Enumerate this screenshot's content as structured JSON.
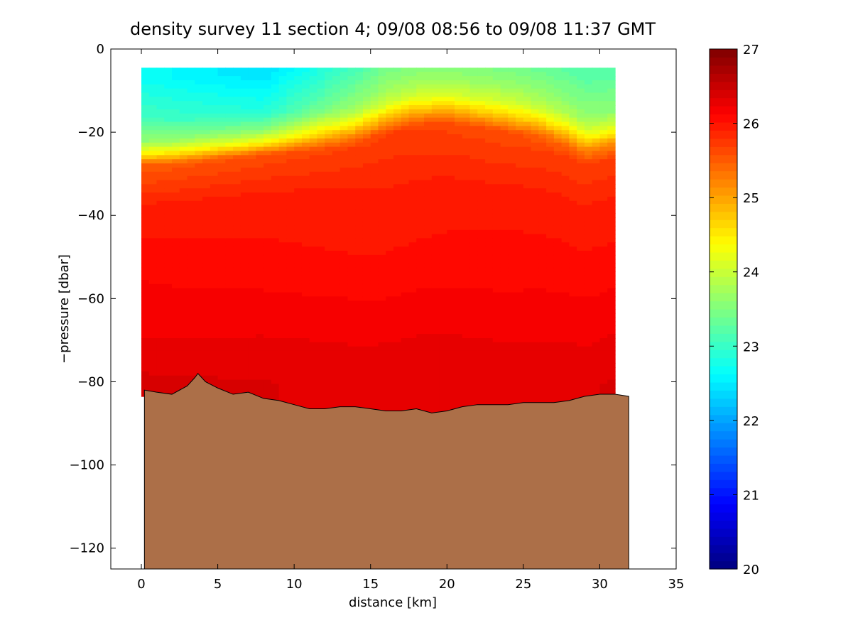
{
  "chart_data": {
    "type": "heatmap",
    "title": "density survey 11 section 4; 09/08 08:56 to 09/08 11:37 GMT",
    "xlabel": "distance [km]",
    "ylabel": "−pressure [dbar]",
    "xlim": [
      -2,
      35
    ],
    "ylim": [
      -125,
      0
    ],
    "xticks": [
      0,
      5,
      10,
      15,
      20,
      25,
      30,
      35
    ],
    "xtick_labels": [
      "0",
      "5",
      "10",
      "15",
      "20",
      "25",
      "30",
      "35"
    ],
    "yticks": [
      0,
      -20,
      -40,
      -60,
      -80,
      -100,
      -120
    ],
    "ytick_labels": [
      "0",
      "−20",
      "−40",
      "−60",
      "−80",
      "−100",
      "−120"
    ],
    "colorbar": {
      "range": [
        20,
        27
      ],
      "ticks": [
        20,
        21,
        22,
        23,
        24,
        25,
        26,
        27
      ],
      "tick_labels": [
        "20",
        "21",
        "22",
        "23",
        "24",
        "25",
        "26",
        "27"
      ],
      "colormap": "jet"
    },
    "data_extent": {
      "x": [
        0,
        31
      ],
      "y_top": -4.5
    },
    "pycnocline_depth": [
      [
        0,
        -23
      ],
      [
        2,
        -23
      ],
      [
        4,
        -22.5
      ],
      [
        6,
        -22
      ],
      [
        8,
        -21.5
      ],
      [
        10,
        -21
      ],
      [
        12,
        -20.5
      ],
      [
        14,
        -20
      ],
      [
        16,
        -18.5
      ],
      [
        18,
        -16.5
      ],
      [
        20,
        -16
      ],
      [
        22,
        -17
      ],
      [
        24,
        -18
      ],
      [
        26,
        -19
      ],
      [
        28,
        -21
      ],
      [
        29,
        -23
      ],
      [
        31,
        -21
      ]
    ],
    "density_levels": [
      {
        "x": 0,
        "profile": [
          [
            -5,
            22.7
          ],
          [
            -15,
            23.1
          ],
          [
            -20,
            23.6
          ],
          [
            -23,
            24.4
          ],
          [
            -26,
            25.5
          ],
          [
            -35,
            25.9
          ],
          [
            -50,
            26.1
          ],
          [
            -65,
            26.2
          ],
          [
            -80,
            26.4
          ]
        ]
      },
      {
        "x": 8,
        "profile": [
          [
            -5,
            22.4
          ],
          [
            -15,
            22.9
          ],
          [
            -19,
            23.6
          ],
          [
            -22,
            24.4
          ],
          [
            -25,
            25.6
          ],
          [
            -35,
            25.95
          ],
          [
            -50,
            26.05
          ],
          [
            -65,
            26.2
          ],
          [
            -80,
            26.35
          ]
        ]
      },
      {
        "x": 16,
        "profile": [
          [
            -5,
            23.3
          ],
          [
            -12,
            23.7
          ],
          [
            -16,
            24.1
          ],
          [
            -19,
            24.8
          ],
          [
            -23,
            25.7
          ],
          [
            -35,
            25.9
          ],
          [
            -50,
            26.0
          ],
          [
            -65,
            26.15
          ],
          [
            -80,
            26.3
          ]
        ]
      },
      {
        "x": 24,
        "profile": [
          [
            -5,
            23.3
          ],
          [
            -12,
            23.7
          ],
          [
            -16,
            24.1
          ],
          [
            -19,
            24.7
          ],
          [
            -23,
            25.6
          ],
          [
            -35,
            25.9
          ],
          [
            -50,
            26.05
          ],
          [
            -65,
            26.15
          ],
          [
            -80,
            26.3
          ]
        ]
      },
      {
        "x": 31,
        "profile": [
          [
            -5,
            23.2
          ],
          [
            -15,
            23.6
          ],
          [
            -19,
            24.2
          ],
          [
            -22,
            25.0
          ],
          [
            -26,
            25.7
          ],
          [
            -35,
            25.9
          ],
          [
            -50,
            26.05
          ],
          [
            -65,
            26.2
          ],
          [
            -80,
            26.35
          ]
        ]
      }
    ],
    "bathymetry": [
      [
        0.2,
        -82
      ],
      [
        1,
        -82.5
      ],
      [
        2,
        -83
      ],
      [
        3,
        -81
      ],
      [
        3.5,
        -79
      ],
      [
        3.7,
        -78
      ],
      [
        4.2,
        -80
      ],
      [
        5,
        -81.5
      ],
      [
        6,
        -83
      ],
      [
        7,
        -82.5
      ],
      [
        8,
        -84
      ],
      [
        9,
        -84.5
      ],
      [
        10,
        -85.5
      ],
      [
        11,
        -86.5
      ],
      [
        12,
        -86.5
      ],
      [
        13,
        -86
      ],
      [
        14,
        -86
      ],
      [
        15,
        -86.5
      ],
      [
        16,
        -87
      ],
      [
        17,
        -87
      ],
      [
        18,
        -86.5
      ],
      [
        19,
        -87.5
      ],
      [
        20,
        -87
      ],
      [
        21,
        -86
      ],
      [
        22,
        -85.5
      ],
      [
        23,
        -85.5
      ],
      [
        24,
        -85.5
      ],
      [
        25,
        -85
      ],
      [
        26,
        -85
      ],
      [
        27,
        -85
      ],
      [
        28,
        -84.5
      ],
      [
        29,
        -83.5
      ],
      [
        30,
        -83
      ],
      [
        31,
        -83
      ],
      [
        31.9,
        -83.5
      ]
    ],
    "bottom_gap_y": -80,
    "colors": {
      "bathymetry": "#AC6F48",
      "background": "#FFFFFF"
    }
  }
}
